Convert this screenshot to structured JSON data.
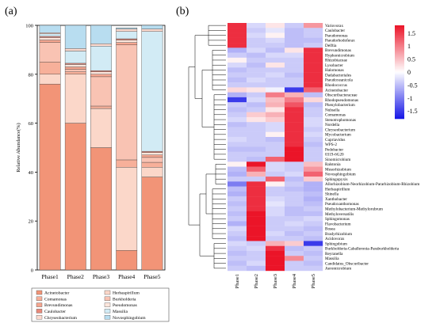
{
  "panel_a": {
    "label": "(a)"
  },
  "panel_b": {
    "label": "(b)"
  },
  "chart_data": [
    {
      "type": "bar",
      "stacked": true,
      "ylabel": "Relative Abundance(%)",
      "ylim": [
        0,
        100
      ],
      "yticks": [
        0,
        20,
        40,
        60,
        80,
        100
      ],
      "grid": false,
      "categories": [
        "Phase1",
        "Phase2",
        "Phase3",
        "Phase4",
        "Phase5"
      ],
      "legend_position": "bottom",
      "series": [
        {
          "name": "Acinetobacter",
          "color": "#f29477",
          "values": [
            76,
            60,
            50,
            8,
            38
          ]
        },
        {
          "name": "Herbaspirillum",
          "color": "#fbd7c9",
          "values": [
            4,
            20,
            16,
            34,
            4
          ]
        },
        {
          "name": "Comamonas",
          "color": "#f7b09a",
          "values": [
            5,
            1,
            1,
            3,
            2
          ]
        },
        {
          "name": "Burkholderia",
          "color": "#f9c3b3",
          "values": [
            8,
            1,
            12,
            47,
            2
          ]
        },
        {
          "name": "Brevundimonas",
          "color": "#f5a58f",
          "values": [
            1,
            1,
            1,
            1,
            1
          ]
        },
        {
          "name": "Pseudomonas",
          "color": "#fde6dc",
          "values": [
            1,
            1,
            1,
            1,
            1
          ]
        },
        {
          "name": "Caulobacter",
          "color": "#e8897a",
          "values": [
            0.5,
            0.5,
            0.5,
            0.5,
            0.5
          ]
        },
        {
          "name": "Massilia",
          "color": "#d2ebf5",
          "values": [
            1,
            5,
            10,
            3,
            49
          ]
        },
        {
          "name": "Chryseobacterium",
          "color": "#fcdacf",
          "values": [
            0.5,
            1,
            1,
            1,
            1
          ]
        },
        {
          "name": "Novosphingobium",
          "color": "#b8ddf0",
          "values": [
            3,
            9.5,
            7.5,
            0.5,
            1.5
          ]
        }
      ]
    },
    {
      "type": "heatmap",
      "colorbar_ticks": [
        1.5,
        1,
        0.5,
        0,
        -0.5,
        -1,
        -1.5
      ],
      "vmin": -1.8,
      "vmax": 1.8,
      "columns": [
        "Phase1",
        "Phase2",
        "Phase3",
        "Phase4",
        "Phase5"
      ],
      "rows": [
        "Variovorax",
        "Caulobacter",
        "Pseudomonas",
        "Pseudorhodoferax",
        "Delftia",
        "Brevundimonas",
        "Hyphomicrobium",
        "Rhizobiaceae",
        "Lysobacter",
        "Halomonas",
        "Dadabacteriales",
        "Pseudoxeanicola",
        "Rhodococcus",
        "Acinetobacter",
        "Obscuribacteraceae",
        "Rhodopseudomonas",
        "Phenylobacterium",
        "Nubsella",
        "Comamonas",
        "Stenotrophomonas",
        "Nordella",
        "Chryseobacterium",
        "Mycobacterium",
        "Cupriavidus",
        "WPS-2",
        "Pedobacter",
        "0319-6G20",
        "Sinomicrobium",
        "Ralstonia",
        "Mesorhizobium",
        "Novosphingobium",
        "Sphingopyxis",
        "Allorhizobium-Neorhizobium-Pararhizobium-Rhizobium",
        "Herbaspirillum",
        "Shinella",
        "Xanthobacter",
        "Pseudoxanthomonas",
        "Methylobacterium-Methylorubrum",
        "Methyloversatilis",
        "Sphingomonas",
        "Flavobacterium",
        "Bosea",
        "Bradyrhizobium",
        "Acidovorax",
        "Sphingobium",
        "Burkholderia-Caballeronia-Paraburkholderia",
        "Reyranella",
        "Massilia",
        "Candidatus_Obscuribacter",
        "Aeromicrobium"
      ],
      "values": [
        [
          1.6,
          -0.3,
          0.2,
          -0.4,
          0.8
        ],
        [
          1.6,
          -0.4,
          -0.2,
          -0.5,
          -0.4
        ],
        [
          1.6,
          -0.3,
          0.1,
          -0.5,
          -0.4
        ],
        [
          1.6,
          -0.4,
          -0.3,
          -0.5,
          -0.5
        ],
        [
          1.6,
          -0.4,
          -0.4,
          -0.5,
          -0.4
        ],
        [
          -0.6,
          -0.3,
          -0.5,
          0.2,
          1.6
        ],
        [
          -0.4,
          -0.5,
          -0.3,
          -0.3,
          1.6
        ],
        [
          0.1,
          -0.4,
          -0.4,
          -0.4,
          1.6
        ],
        [
          -0.3,
          -0.5,
          0.2,
          -0.4,
          1.6
        ],
        [
          -0.5,
          -0.4,
          -0.4,
          -0.4,
          1.6
        ],
        [
          -0.4,
          -0.4,
          -0.3,
          -0.5,
          1.6
        ],
        [
          -0.5,
          -0.3,
          -0.4,
          -0.4,
          1.6
        ],
        [
          -0.4,
          -0.4,
          -0.4,
          -0.4,
          1.6
        ],
        [
          0.3,
          0.2,
          -0.1,
          -1.5,
          1.2
        ],
        [
          -0.6,
          -0.4,
          1.0,
          0.6,
          -0.5
        ],
        [
          -1.5,
          -0.3,
          0.5,
          1.0,
          0.3
        ],
        [
          -0.4,
          -0.5,
          0.6,
          1.3,
          -0.5
        ],
        [
          -0.5,
          -0.4,
          0.2,
          1.6,
          -0.4
        ],
        [
          -0.4,
          0.4,
          0.6,
          1.6,
          -0.4
        ],
        [
          -0.3,
          0.2,
          0.4,
          1.6,
          -0.3
        ],
        [
          -0.5,
          -0.4,
          -0.3,
          1.6,
          -0.3
        ],
        [
          -0.4,
          -0.4,
          -0.3,
          1.6,
          -0.4
        ],
        [
          -0.4,
          -0.4,
          0.1,
          1.6,
          -0.3
        ],
        [
          -0.3,
          -0.4,
          -0.5,
          1.6,
          -0.4
        ],
        [
          -0.4,
          -0.4,
          -0.4,
          1.6,
          -0.5
        ],
        [
          -0.5,
          -0.5,
          -0.4,
          1.8,
          -0.4
        ],
        [
          -0.4,
          -0.4,
          -0.4,
          1.8,
          -0.4
        ],
        [
          -0.4,
          -0.5,
          1.2,
          1.8,
          -0.4
        ],
        [
          0.1,
          1.8,
          -0.3,
          -0.4,
          0.5
        ],
        [
          -0.5,
          1.2,
          -0.3,
          -0.4,
          0.8
        ],
        [
          -0.6,
          0.6,
          -0.4,
          -0.3,
          1.2
        ],
        [
          -0.4,
          -0.4,
          1.2,
          -0.5,
          0.4
        ],
        [
          -1.0,
          1.6,
          0.1,
          -0.4,
          -0.6
        ],
        [
          -0.5,
          1.6,
          -0.4,
          -0.5,
          -0.6
        ],
        [
          -0.6,
          1.6,
          -0.4,
          -0.4,
          -0.5
        ],
        [
          -0.4,
          1.6,
          -0.3,
          -0.4,
          -0.6
        ],
        [
          -0.5,
          1.6,
          -0.2,
          -0.4,
          -0.5
        ],
        [
          -0.4,
          1.6,
          -0.3,
          -0.5,
          -0.4
        ],
        [
          -0.5,
          1.8,
          -0.3,
          -0.5,
          -0.5
        ],
        [
          -0.4,
          1.8,
          -0.4,
          -0.4,
          -0.3
        ],
        [
          -0.6,
          1.8,
          -0.4,
          -0.3,
          -0.4
        ],
        [
          -0.3,
          1.8,
          -0.4,
          -0.4,
          -0.5
        ],
        [
          -0.4,
          1.8,
          -0.3,
          -0.5,
          -0.4
        ],
        [
          -0.5,
          1.8,
          -0.4,
          -0.4,
          -0.5
        ],
        [
          -0.3,
          -0.4,
          0.6,
          0.4,
          -1.5
        ],
        [
          -0.4,
          -0.3,
          1.6,
          -0.5,
          -0.4
        ],
        [
          -0.5,
          -0.4,
          1.8,
          -0.4,
          -0.5
        ],
        [
          -0.4,
          -0.4,
          1.8,
          0.9,
          -0.4
        ],
        [
          -0.5,
          -0.3,
          1.8,
          -0.4,
          -0.5
        ],
        [
          -0.4,
          -0.5,
          1.8,
          -0.4,
          -0.4
        ]
      ]
    }
  ]
}
